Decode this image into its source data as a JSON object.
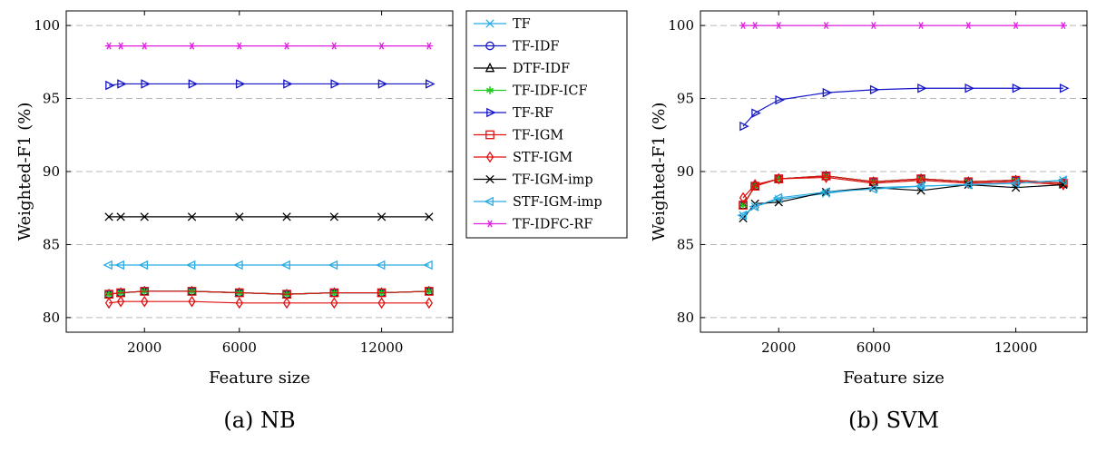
{
  "legend": {
    "entries": [
      {
        "name": "TF",
        "color": "#29abe2",
        "marker": "x"
      },
      {
        "name": "TF-IDF",
        "color": "#1414c8",
        "marker": "circle"
      },
      {
        "name": "DTF-IDF",
        "color": "#000000",
        "marker": "triangle-up"
      },
      {
        "name": "TF-IDF-ICF",
        "color": "#22cc22",
        "marker": "star"
      },
      {
        "name": "TF-RF",
        "color": "#1414c8",
        "marker": "triangle-right"
      },
      {
        "name": "TF-IGM",
        "color": "#e01010",
        "marker": "square"
      },
      {
        "name": "STF-IGM",
        "color": "#e01010",
        "marker": "diamond"
      },
      {
        "name": "TF-IGM-imp",
        "color": "#000000",
        "marker": "x"
      },
      {
        "name": "STF-IGM-imp",
        "color": "#29abe2",
        "marker": "triangle-left"
      },
      {
        "name": "TF-IDFC-RF",
        "color": "#e020e0",
        "marker": "asterisk"
      }
    ]
  },
  "chart_data": [
    {
      "type": "line",
      "caption": "(a) NB",
      "xlabel": "Feature size",
      "ylabel": "Weighted-F1 (%)",
      "xlim": [
        -1300,
        15000
      ],
      "ylim": [
        79,
        101
      ],
      "xticks": [
        2000,
        6000,
        12000
      ],
      "yticks": [
        80,
        85,
        90,
        95,
        100
      ],
      "grid": "horizontal dashed",
      "x": [
        500,
        1000,
        2000,
        4000,
        6000,
        8000,
        10000,
        12000,
        14000
      ],
      "series": [
        {
          "name": "TF",
          "values": [
            81.6,
            81.7,
            81.8,
            81.8,
            81.7,
            81.6,
            81.7,
            81.7,
            81.8
          ]
        },
        {
          "name": "TF-IDF",
          "values": [
            81.6,
            81.7,
            81.8,
            81.8,
            81.7,
            81.6,
            81.7,
            81.7,
            81.8
          ]
        },
        {
          "name": "DTF-IDF",
          "values": [
            81.6,
            81.7,
            81.8,
            81.8,
            81.7,
            81.6,
            81.7,
            81.7,
            81.8
          ]
        },
        {
          "name": "TF-IDF-ICF",
          "values": [
            81.6,
            81.7,
            81.8,
            81.8,
            81.7,
            81.6,
            81.7,
            81.7,
            81.8
          ]
        },
        {
          "name": "TF-RF",
          "values": [
            95.9,
            96.0,
            96.0,
            96.0,
            96.0,
            96.0,
            96.0,
            96.0,
            96.0
          ]
        },
        {
          "name": "TF-IGM",
          "values": [
            81.6,
            81.7,
            81.8,
            81.8,
            81.7,
            81.6,
            81.7,
            81.7,
            81.8
          ]
        },
        {
          "name": "STF-IGM",
          "values": [
            81.0,
            81.1,
            81.1,
            81.1,
            81.0,
            81.0,
            81.0,
            81.0,
            81.0
          ]
        },
        {
          "name": "TF-IGM-imp",
          "values": [
            86.9,
            86.9,
            86.9,
            86.9,
            86.9,
            86.9,
            86.9,
            86.9,
            86.9
          ]
        },
        {
          "name": "STF-IGM-imp",
          "values": [
            83.6,
            83.6,
            83.6,
            83.6,
            83.6,
            83.6,
            83.6,
            83.6,
            83.6
          ]
        },
        {
          "name": "TF-IDFC-RF",
          "values": [
            98.6,
            98.6,
            98.6,
            98.6,
            98.6,
            98.6,
            98.6,
            98.6,
            98.6
          ]
        }
      ]
    },
    {
      "type": "line",
      "caption": "(b) SVM",
      "xlabel": "Feature size",
      "ylabel": "Weighted-F1 (%)",
      "xlim": [
        -1300,
        15000
      ],
      "ylim": [
        79,
        101
      ],
      "xticks": [
        2000,
        6000,
        12000
      ],
      "yticks": [
        80,
        85,
        90,
        95,
        100
      ],
      "grid": "horizontal dashed",
      "x": [
        500,
        1000,
        2000,
        4000,
        6000,
        8000,
        10000,
        12000,
        14000
      ],
      "series": [
        {
          "name": "TF",
          "values": [
            87.0,
            87.6,
            88.1,
            88.5,
            88.9,
            89.0,
            89.1,
            89.2,
            89.4
          ]
        },
        {
          "name": "TF-IDF",
          "values": [
            87.7,
            89.0,
            89.5,
            89.7,
            89.3,
            89.5,
            89.3,
            89.4,
            89.2
          ]
        },
        {
          "name": "DTF-IDF",
          "values": [
            87.7,
            89.0,
            89.5,
            89.7,
            89.3,
            89.5,
            89.3,
            89.4,
            89.2
          ]
        },
        {
          "name": "TF-IDF-ICF",
          "values": [
            87.7,
            89.0,
            89.5,
            89.7,
            89.3,
            89.5,
            89.3,
            89.4,
            89.2
          ]
        },
        {
          "name": "TF-RF",
          "values": [
            93.1,
            94.0,
            94.9,
            95.4,
            95.6,
            95.7,
            95.7,
            95.7,
            95.7
          ]
        },
        {
          "name": "TF-IGM",
          "values": [
            87.7,
            89.0,
            89.5,
            89.7,
            89.3,
            89.5,
            89.3,
            89.4,
            89.2
          ]
        },
        {
          "name": "STF-IGM",
          "values": [
            88.2,
            89.1,
            89.5,
            89.6,
            89.2,
            89.4,
            89.2,
            89.3,
            89.1
          ]
        },
        {
          "name": "TF-IGM-imp",
          "values": [
            86.8,
            87.8,
            87.9,
            88.6,
            88.9,
            88.7,
            89.1,
            88.9,
            89.1
          ]
        },
        {
          "name": "STF-IGM-imp",
          "values": [
            87.0,
            87.6,
            88.2,
            88.6,
            88.8,
            89.0,
            89.1,
            89.2,
            89.4
          ]
        },
        {
          "name": "TF-IDFC-RF",
          "values": [
            100.0,
            100.0,
            100.0,
            100.0,
            100.0,
            100.0,
            100.0,
            100.0,
            100.0
          ]
        }
      ]
    }
  ]
}
